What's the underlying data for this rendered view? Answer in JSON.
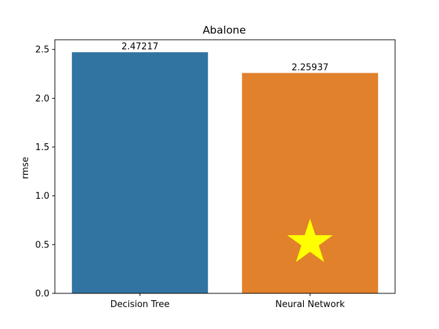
{
  "chart_data": {
    "type": "bar",
    "title": "Abalone",
    "xlabel": "",
    "ylabel": "rmse",
    "categories": [
      "Decision Tree",
      "Neural Network"
    ],
    "values": [
      2.47217,
      2.25937
    ],
    "value_labels": [
      "2.47217",
      "2.25937"
    ],
    "colors": [
      "#3274a1",
      "#e1812c"
    ],
    "ylim": [
      0,
      2.6
    ],
    "yticks": [
      0.0,
      0.5,
      1.0,
      1.5,
      2.0,
      2.5
    ],
    "ytick_labels": [
      "0.0",
      "0.5",
      "1.0",
      "1.5",
      "2.0",
      "2.5"
    ],
    "grid": false,
    "marker": {
      "category": "Neural Network",
      "value": 0.52,
      "shape": "star-icon",
      "color": "#ffff00"
    }
  }
}
